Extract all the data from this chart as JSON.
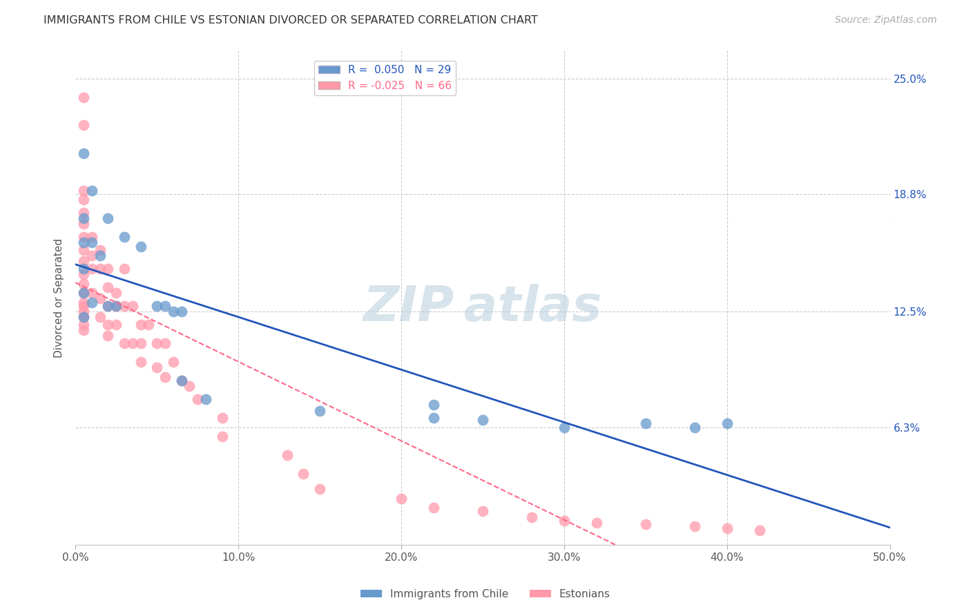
{
  "title": "IMMIGRANTS FROM CHILE VS ESTONIAN DIVORCED OR SEPARATED CORRELATION CHART",
  "source": "Source: ZipAtlas.com",
  "ylabel": "Divorced or Separated",
  "ylim": [
    0.0,
    0.265
  ],
  "xlim": [
    0.0,
    0.5
  ],
  "y_ticks": [
    0.063,
    0.125,
    0.188,
    0.25
  ],
  "ylabel_labels": [
    "6.3%",
    "12.5%",
    "18.8%",
    "25.0%"
  ],
  "x_ticks": [
    0.0,
    0.1,
    0.2,
    0.3,
    0.4,
    0.5
  ],
  "xlabel_labels": [
    "0.0%",
    "10.0%",
    "20.0%",
    "30.0%",
    "40.0%",
    "50.0%"
  ],
  "blue_R": 0.05,
  "blue_N": 29,
  "pink_R": -0.025,
  "pink_N": 66,
  "blue_color": "#6699CC",
  "pink_color": "#FF99AA",
  "blue_line_color": "#2255BB",
  "pink_line_color": "#FF6688",
  "blue_points_x": [
    0.005,
    0.005,
    0.005,
    0.005,
    0.005,
    0.005,
    0.01,
    0.01,
    0.01,
    0.015,
    0.02,
    0.02,
    0.025,
    0.03,
    0.04,
    0.05,
    0.055,
    0.06,
    0.065,
    0.065,
    0.08,
    0.15,
    0.22,
    0.22,
    0.25,
    0.3,
    0.35,
    0.38,
    0.4
  ],
  "blue_points_y": [
    0.21,
    0.175,
    0.162,
    0.148,
    0.135,
    0.122,
    0.19,
    0.162,
    0.13,
    0.155,
    0.175,
    0.128,
    0.128,
    0.165,
    0.16,
    0.128,
    0.128,
    0.125,
    0.125,
    0.088,
    0.078,
    0.072,
    0.075,
    0.068,
    0.067,
    0.063,
    0.065,
    0.063,
    0.065
  ],
  "pink_points_x": [
    0.005,
    0.005,
    0.005,
    0.005,
    0.005,
    0.005,
    0.005,
    0.005,
    0.005,
    0.005,
    0.005,
    0.005,
    0.005,
    0.005,
    0.005,
    0.005,
    0.005,
    0.005,
    0.01,
    0.01,
    0.01,
    0.01,
    0.015,
    0.015,
    0.015,
    0.015,
    0.02,
    0.02,
    0.02,
    0.02,
    0.02,
    0.025,
    0.025,
    0.025,
    0.03,
    0.03,
    0.03,
    0.035,
    0.035,
    0.04,
    0.04,
    0.04,
    0.045,
    0.05,
    0.05,
    0.055,
    0.055,
    0.06,
    0.065,
    0.07,
    0.075,
    0.09,
    0.09,
    0.13,
    0.14,
    0.15,
    0.2,
    0.22,
    0.25,
    0.28,
    0.3,
    0.32,
    0.35,
    0.38,
    0.4,
    0.42
  ],
  "pink_points_y": [
    0.24,
    0.225,
    0.19,
    0.185,
    0.178,
    0.172,
    0.165,
    0.158,
    0.152,
    0.145,
    0.14,
    0.135,
    0.13,
    0.128,
    0.125,
    0.122,
    0.118,
    0.115,
    0.165,
    0.155,
    0.148,
    0.135,
    0.158,
    0.148,
    0.132,
    0.122,
    0.148,
    0.138,
    0.128,
    0.118,
    0.112,
    0.135,
    0.128,
    0.118,
    0.148,
    0.128,
    0.108,
    0.128,
    0.108,
    0.118,
    0.108,
    0.098,
    0.118,
    0.108,
    0.095,
    0.108,
    0.09,
    0.098,
    0.088,
    0.085,
    0.078,
    0.068,
    0.058,
    0.048,
    0.038,
    0.03,
    0.025,
    0.02,
    0.018,
    0.015,
    0.013,
    0.012,
    0.011,
    0.01,
    0.009,
    0.008
  ]
}
